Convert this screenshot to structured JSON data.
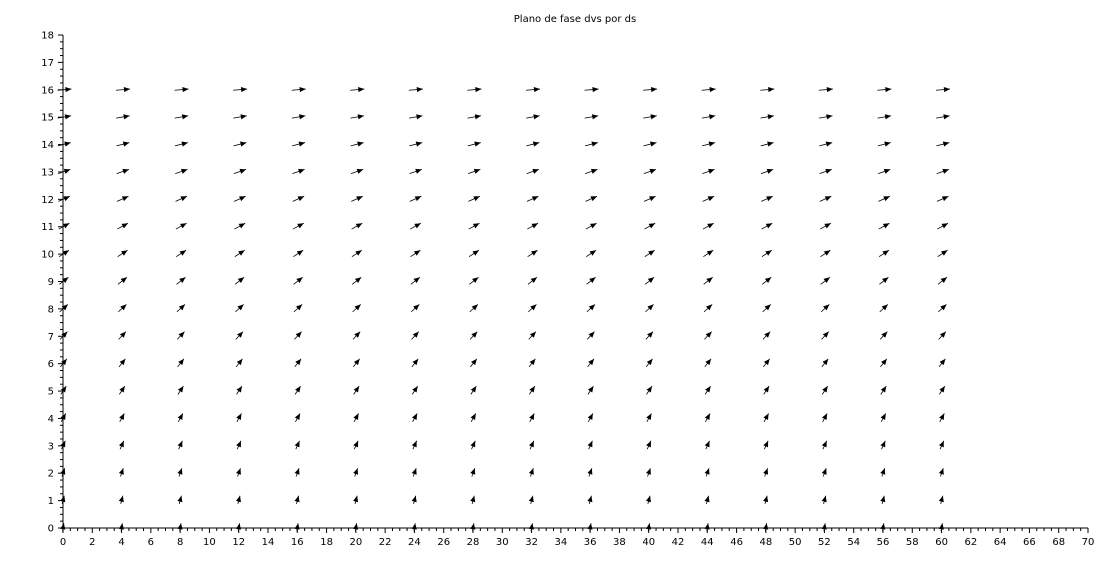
{
  "chart_data": {
    "type": "quiver",
    "title": "Plano de fase dvs por ds",
    "xlabel": "",
    "ylabel": "",
    "xlim": [
      0,
      70
    ],
    "ylim": [
      0,
      18
    ],
    "x_ticks": [
      0,
      2,
      4,
      6,
      8,
      10,
      12,
      14,
      16,
      18,
      20,
      22,
      24,
      26,
      28,
      30,
      32,
      34,
      36,
      38,
      40,
      42,
      44,
      46,
      48,
      50,
      52,
      54,
      56,
      58,
      60,
      62,
      64,
      66,
      68,
      70
    ],
    "y_ticks": [
      0,
      1,
      2,
      3,
      4,
      5,
      6,
      7,
      8,
      9,
      10,
      11,
      12,
      13,
      14,
      15,
      16,
      17,
      18
    ],
    "grid": false,
    "field_x": [
      0,
      4,
      8,
      12,
      16,
      20,
      24,
      28,
      32,
      36,
      40,
      44,
      48,
      52,
      56,
      60
    ],
    "field_y": [
      0,
      1,
      2,
      3,
      4,
      5,
      6,
      7,
      8,
      9,
      10,
      11,
      12,
      13,
      14,
      15,
      16
    ]
  }
}
